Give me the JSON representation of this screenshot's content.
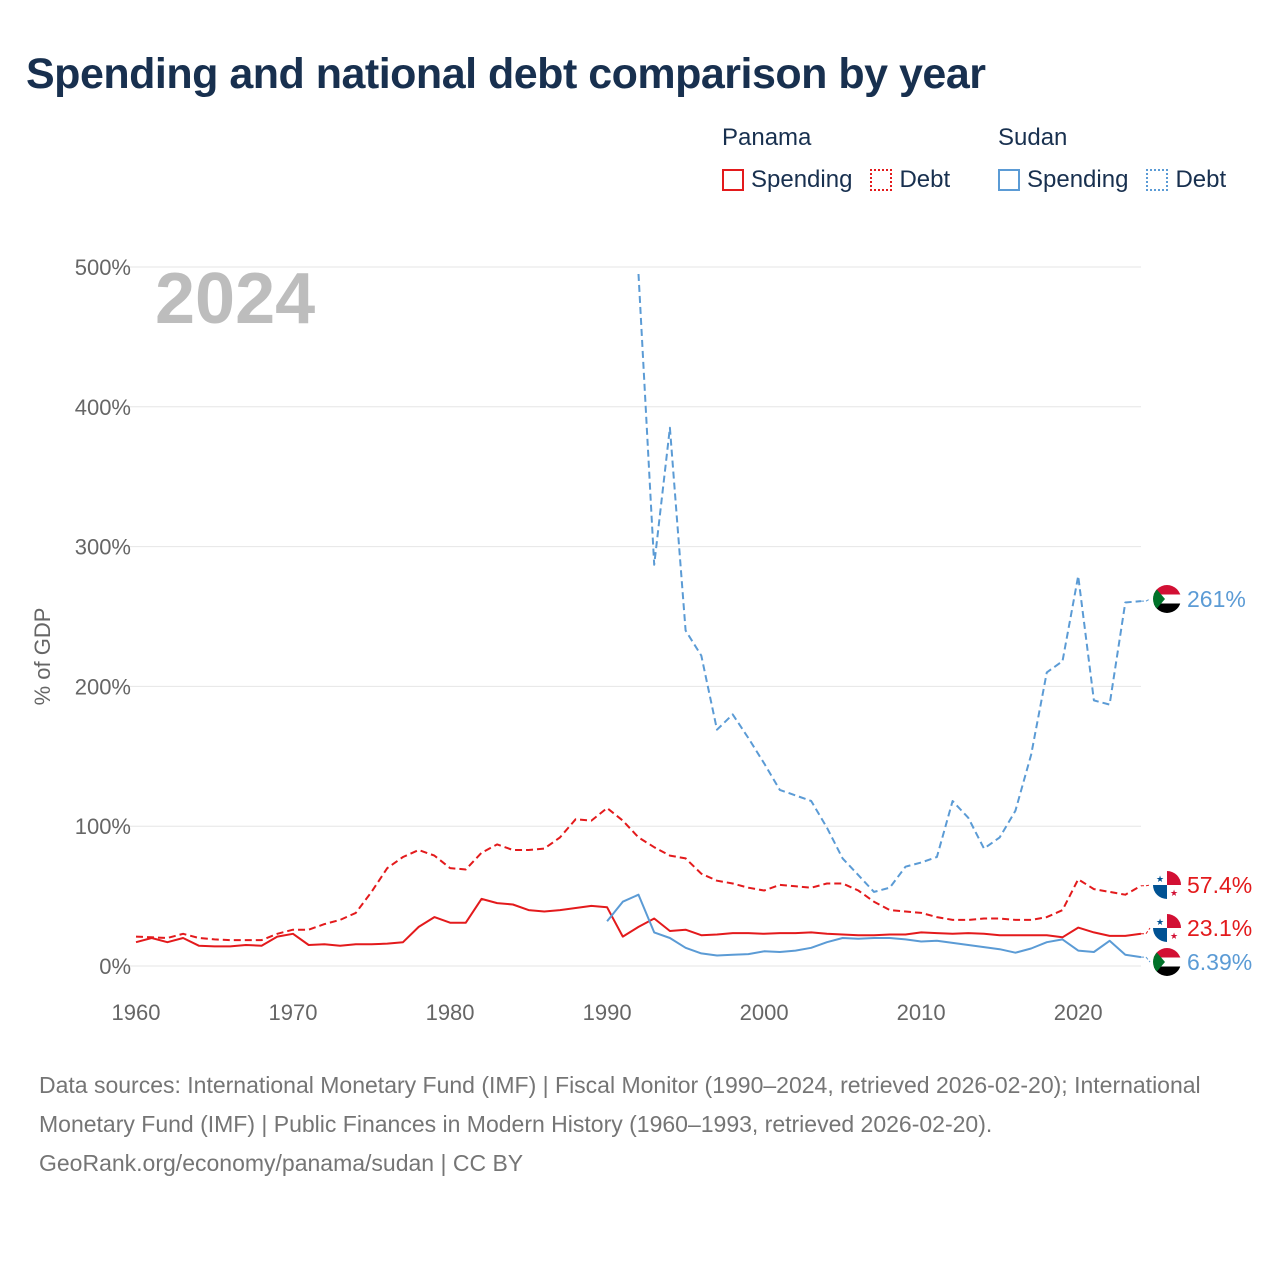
{
  "title": "Spending and national debt comparison by year",
  "legend": {
    "groups": [
      {
        "country": "Panama",
        "color": "#e31a1c",
        "items": [
          {
            "label": "Spending",
            "style": "solid"
          },
          {
            "label": "Debt",
            "style": "dotted"
          }
        ]
      },
      {
        "country": "Sudan",
        "color": "#5b9bd5",
        "items": [
          {
            "label": "Spending",
            "style": "solid"
          },
          {
            "label": "Debt",
            "style": "dotted"
          }
        ]
      }
    ]
  },
  "chart_data": {
    "type": "line",
    "title": "Spending and national debt comparison by year",
    "xlabel": "",
    "ylabel": "% of GDP",
    "xlim": [
      1960,
      2024
    ],
    "ylim": [
      0,
      500
    ],
    "x_ticks": [
      1960,
      1970,
      1980,
      1990,
      2000,
      2010,
      2020
    ],
    "x_tick_labels": [
      "1960",
      "1970",
      "1980",
      "1990",
      "2000",
      "2010",
      "2020"
    ],
    "y_ticks": [
      0,
      100,
      200,
      300,
      400,
      500
    ],
    "y_tick_labels": [
      "0%",
      "100%",
      "200%",
      "300%",
      "400%",
      "500%"
    ],
    "grid": "horizontal",
    "year_label": "2024",
    "series": [
      {
        "name": "Panama Debt",
        "country": "Panama",
        "metric": "Debt",
        "color": "#e31a1c",
        "dash": "dashed",
        "x": [
          1960,
          1961,
          1962,
          1963,
          1964,
          1965,
          1966,
          1967,
          1968,
          1969,
          1970,
          1971,
          1972,
          1973,
          1974,
          1975,
          1976,
          1977,
          1978,
          1979,
          1980,
          1981,
          1982,
          1983,
          1984,
          1985,
          1986,
          1987,
          1988,
          1989,
          1990,
          1991,
          1992,
          1993,
          1994,
          1995,
          1996,
          1997,
          1998,
          1999,
          2000,
          2001,
          2002,
          2003,
          2004,
          2005,
          2006,
          2007,
          2008,
          2009,
          2010,
          2011,
          2012,
          2013,
          2014,
          2015,
          2016,
          2017,
          2018,
          2019,
          2020,
          2021,
          2022,
          2023,
          2024
        ],
        "values": [
          21,
          20.5,
          20,
          23,
          20,
          19,
          18.5,
          18.5,
          18.5,
          23,
          26,
          26,
          30,
          33,
          38,
          53,
          70,
          78,
          83,
          79,
          70,
          69,
          81,
          87,
          83,
          83,
          84,
          92,
          105,
          104,
          113,
          104,
          92,
          85,
          79,
          77,
          66,
          61,
          59,
          56,
          54,
          58,
          57,
          56,
          59,
          59,
          54,
          46,
          40,
          39,
          38,
          35,
          33,
          33,
          34,
          34,
          33,
          33,
          35,
          40,
          62,
          55,
          53,
          51,
          57.4
        ],
        "end_label": "57.4%"
      },
      {
        "name": "Panama Spending",
        "country": "Panama",
        "metric": "Spending",
        "color": "#e31a1c",
        "dash": "solid",
        "x": [
          1960,
          1961,
          1962,
          1963,
          1964,
          1965,
          1966,
          1967,
          1968,
          1969,
          1970,
          1971,
          1972,
          1973,
          1974,
          1975,
          1976,
          1977,
          1978,
          1979,
          1980,
          1981,
          1982,
          1983,
          1984,
          1985,
          1986,
          1987,
          1988,
          1989,
          1990,
          1991,
          1992,
          1993,
          1994,
          1995,
          1996,
          1997,
          1998,
          1999,
          2000,
          2001,
          2002,
          2003,
          2004,
          2005,
          2006,
          2007,
          2008,
          2009,
          2010,
          2011,
          2012,
          2013,
          2014,
          2015,
          2016,
          2017,
          2018,
          2019,
          2020,
          2021,
          2022,
          2023,
          2024
        ],
        "values": [
          17,
          20,
          17,
          20,
          14.5,
          14,
          14,
          15,
          14.5,
          21,
          23,
          15,
          15.5,
          14.5,
          15.5,
          15.5,
          16,
          17,
          28,
          35,
          31,
          31,
          48,
          45,
          44,
          40,
          39,
          40,
          41.5,
          43,
          42,
          21,
          28,
          34,
          25,
          26,
          22,
          22.5,
          23.5,
          23.5,
          23,
          23.5,
          23.5,
          24,
          23,
          22.5,
          22,
          22,
          22.5,
          22.5,
          24,
          23.5,
          23,
          23.5,
          23,
          22,
          22,
          22,
          22,
          20.5,
          27.5,
          24,
          21.5,
          21.5,
          23.1
        ],
        "end_label": "23.1%"
      },
      {
        "name": "Sudan Debt",
        "country": "Sudan",
        "metric": "Debt",
        "color": "#5b9bd5",
        "dash": "dashed",
        "x": [
          1992,
          1993,
          1994,
          1995,
          1996,
          1997,
          1998,
          1999,
          2000,
          2001,
          2002,
          2003,
          2004,
          2005,
          2006,
          2007,
          2008,
          2009,
          2010,
          2011,
          2012,
          2013,
          2014,
          2015,
          2016,
          2017,
          2018,
          2019,
          2020,
          2021,
          2022,
          2023,
          2024
        ],
        "values": [
          495,
          287,
          385,
          240,
          222,
          169,
          180,
          163,
          145,
          126,
          122,
          118,
          99,
          77,
          65,
          53,
          56,
          71,
          74,
          78,
          118,
          106,
          84,
          92,
          111,
          151,
          210,
          218,
          279,
          190,
          187,
          260,
          261
        ],
        "end_label": "261%"
      },
      {
        "name": "Sudan Spending",
        "country": "Sudan",
        "metric": "Spending",
        "color": "#5b9bd5",
        "dash": "solid",
        "x": [
          1990,
          1991,
          1992,
          1993,
          1994,
          1995,
          1996,
          1997,
          1998,
          1999,
          2000,
          2001,
          2002,
          2003,
          2004,
          2005,
          2006,
          2007,
          2008,
          2009,
          2010,
          2011,
          2012,
          2013,
          2014,
          2015,
          2016,
          2017,
          2018,
          2019,
          2020,
          2021,
          2022,
          2023,
          2024
        ],
        "values": [
          32,
          46,
          51,
          24,
          20,
          13,
          9,
          7.5,
          8,
          8.5,
          10.5,
          10,
          11,
          13,
          17,
          20,
          19.5,
          20,
          20,
          19,
          17.5,
          18,
          16.5,
          15,
          13.5,
          12,
          9.5,
          12.5,
          17,
          19,
          11,
          10,
          18,
          8,
          6.39
        ],
        "end_label": "6.39%"
      }
    ]
  },
  "footer": {
    "sources": "Data sources: International Monetary Fund (IMF) | Fiscal Monitor (1990–2024, retrieved 2026-02-20); International Monetary Fund (IMF) | Public Finances in Modern History (1960–1993, retrieved 2026-02-20).",
    "credit": "GeoRank.org/economy/panama/sudan | CC BY"
  }
}
